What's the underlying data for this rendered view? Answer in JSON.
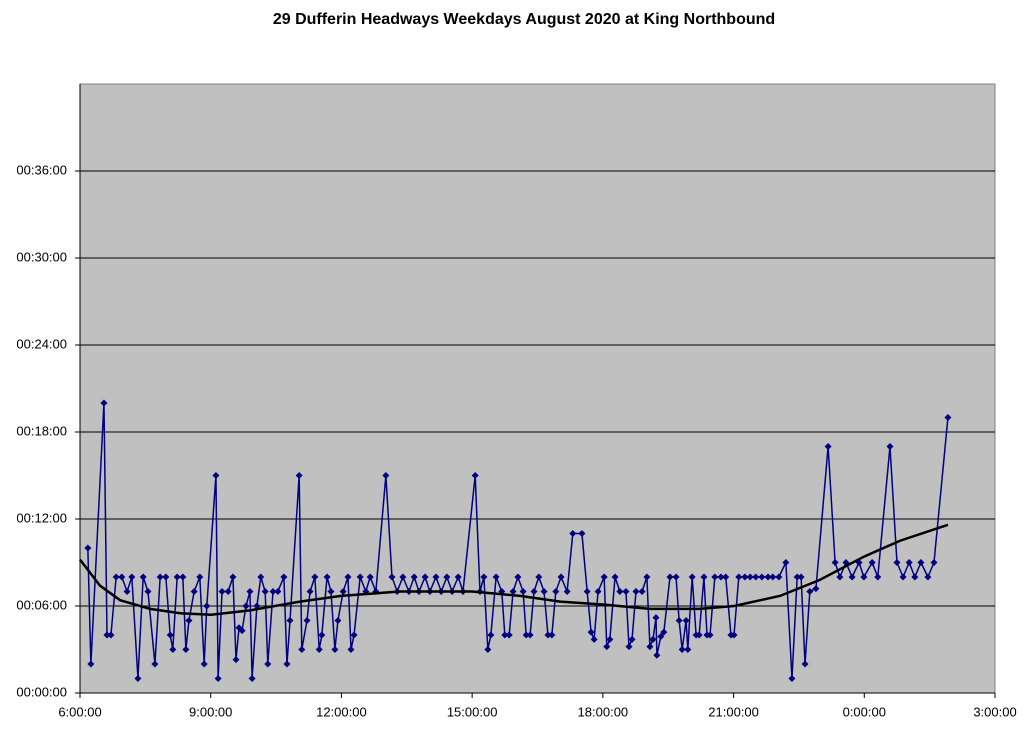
{
  "chart_data": {
    "type": "line",
    "title": "29 Dufferin Headways Weekdays August 2020 at King Northbound",
    "xlim": [
      6,
      27
    ],
    "xticks": [
      {
        "value": 6,
        "label": "6:00:00"
      },
      {
        "value": 9,
        "label": "9:00:00"
      },
      {
        "value": 12,
        "label": "12:00:00"
      },
      {
        "value": 15,
        "label": "15:00:00"
      },
      {
        "value": 18,
        "label": "18:00:00"
      },
      {
        "value": 21,
        "label": "21:00:00"
      },
      {
        "value": 24,
        "label": "0:00:00"
      },
      {
        "value": 27,
        "label": "3:00:00"
      }
    ],
    "ylim": [
      0,
      42
    ],
    "yticks": [
      {
        "value": 0,
        "label": "00:00:00"
      },
      {
        "value": 6,
        "label": "00:06:00"
      },
      {
        "value": 12,
        "label": "00:12:00"
      },
      {
        "value": 18,
        "label": "00:18:00"
      },
      {
        "value": 24,
        "label": "00:24:00"
      },
      {
        "value": 30,
        "label": "00:30:00"
      },
      {
        "value": 36,
        "label": "00:36:00"
      }
    ],
    "grid": true,
    "plot_color": "#c0c0c0",
    "series": [
      {
        "color": "#000080",
        "marker": "diamond",
        "x": [
          6.18,
          6.25,
          6.55,
          6.62,
          6.71,
          6.83,
          6.96,
          7.08,
          7.19,
          7.33,
          7.45,
          7.56,
          7.72,
          7.84,
          7.97,
          8.07,
          8.13,
          8.23,
          8.36,
          8.43,
          8.5,
          8.62,
          8.75,
          8.85,
          8.91,
          9.12,
          9.17,
          9.26,
          9.4,
          9.51,
          9.58,
          9.65,
          9.72,
          9.81,
          9.9,
          9.95,
          10.06,
          10.15,
          10.25,
          10.31,
          10.43,
          10.54,
          10.68,
          10.75,
          10.82,
          11.03,
          11.09,
          11.21,
          11.28,
          11.39,
          11.49,
          11.55,
          11.67,
          11.76,
          11.85,
          11.92,
          12.04,
          12.15,
          12.22,
          12.29,
          12.43,
          12.56,
          12.66,
          12.79,
          13.02,
          13.16,
          13.28,
          13.41,
          13.55,
          13.67,
          13.78,
          13.92,
          14.03,
          14.17,
          14.29,
          14.42,
          14.54,
          14.68,
          14.79,
          15.07,
          15.18,
          15.27,
          15.36,
          15.43,
          15.55,
          15.68,
          15.75,
          15.85,
          15.94,
          16.05,
          16.17,
          16.24,
          16.33,
          16.42,
          16.53,
          16.65,
          16.74,
          16.83,
          16.92,
          17.04,
          17.18,
          17.31,
          17.52,
          17.64,
          17.73,
          17.8,
          17.89,
          18.03,
          18.09,
          18.16,
          18.28,
          18.39,
          18.53,
          18.6,
          18.67,
          18.76,
          18.9,
          19.01,
          19.08,
          19.15,
          19.22,
          19.24,
          19.33,
          19.4,
          19.54,
          19.68,
          19.75,
          19.82,
          19.91,
          19.95,
          20.05,
          20.14,
          20.21,
          20.32,
          20.39,
          20.46,
          20.57,
          20.71,
          20.82,
          20.94,
          21.01,
          21.12,
          21.26,
          21.38,
          21.51,
          21.65,
          21.79,
          21.9,
          22.04,
          22.2,
          22.34,
          22.46,
          22.55,
          22.64,
          22.75,
          22.89,
          23.17,
          23.33,
          23.44,
          23.58,
          23.72,
          23.88,
          23.99,
          24.18,
          24.31,
          24.59,
          24.75,
          24.89,
          25.03,
          25.16,
          25.3,
          25.46,
          25.6,
          25.92
        ],
        "values": [
          10,
          2,
          20,
          4,
          4,
          8,
          8,
          7,
          8,
          1,
          8,
          7,
          2,
          8,
          8,
          4,
          3,
          8,
          8,
          3,
          5,
          7,
          8,
          2,
          6,
          15,
          1,
          7,
          7,
          8,
          2.3,
          4.5,
          4.3,
          6,
          7,
          1,
          6,
          8,
          7,
          2,
          7,
          7,
          8,
          2,
          5,
          15,
          3,
          5,
          7,
          8,
          3,
          4,
          8,
          7,
          3,
          5,
          7,
          8,
          3,
          4,
          8,
          7,
          8,
          7,
          15,
          8,
          7,
          8,
          7,
          8,
          7,
          8,
          7,
          8,
          7,
          8,
          7,
          8,
          7,
          15,
          7,
          8,
          3,
          4,
          8,
          7,
          4,
          4,
          7,
          8,
          7,
          4,
          4,
          7,
          8,
          7,
          4,
          4,
          7,
          8,
          7,
          11,
          11,
          7,
          4.2,
          3.7,
          7,
          8,
          3.2,
          3.7,
          8,
          7,
          7,
          3.2,
          3.7,
          7,
          7,
          8,
          3.2,
          3.7,
          5.2,
          2.6,
          3.9,
          4.2,
          8,
          8,
          5,
          3,
          5,
          3,
          8,
          4,
          4,
          8,
          4,
          4,
          8,
          8,
          8,
          4,
          4,
          8,
          8,
          8,
          8,
          8,
          8,
          8,
          8,
          9,
          1,
          8,
          8,
          2,
          7,
          7.2,
          17,
          9,
          8,
          9,
          8,
          9,
          8,
          9,
          8,
          17,
          9,
          8,
          9,
          8,
          9,
          8,
          9,
          19
        ]
      },
      {
        "color": "#000000",
        "x": [
          6,
          6.46,
          6.92,
          7.61,
          8.3,
          9.01,
          9.9,
          11.05,
          11.99,
          13.34,
          15.0,
          16.1,
          17.02,
          18.0,
          19.08,
          20.23,
          21.01,
          22.07,
          22.98,
          23.99,
          24.82,
          25.92
        ],
        "values": [
          9.2,
          7.4,
          6.4,
          5.8,
          5.5,
          5.4,
          5.7,
          6.3,
          6.7,
          7.0,
          7.0,
          6.7,
          6.3,
          6.1,
          5.8,
          5.8,
          6.0,
          6.7,
          7.8,
          9.4,
          10.5,
          11.6
        ]
      }
    ]
  }
}
